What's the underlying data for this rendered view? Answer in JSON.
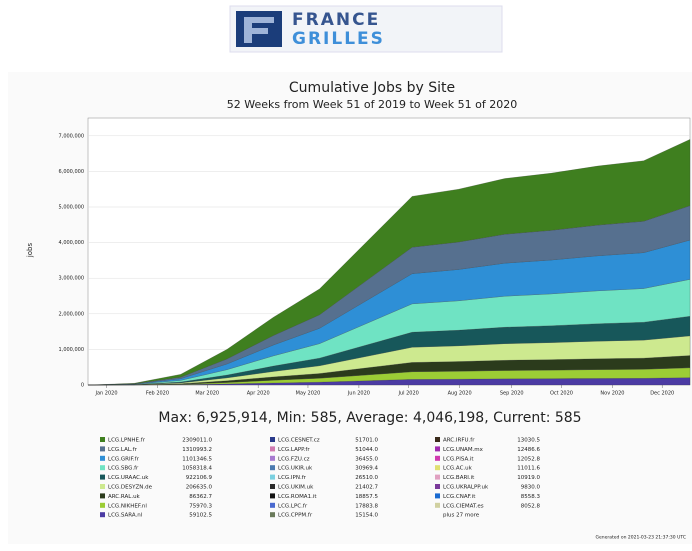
{
  "logo": {
    "line1": "FRANCE",
    "line2": "GRILLES"
  },
  "chart_data": {
    "type": "stacked_area",
    "title": "Cumulative Jobs by Site",
    "subtitle": "52 Weeks from Week 51 of 2019 to Week 51 of 2020",
    "ylabel": "jobs",
    "x": [
      0,
      4,
      8,
      12,
      16,
      20,
      24,
      28,
      32,
      36,
      40,
      44,
      48,
      52
    ],
    "xlim": [
      0,
      52
    ],
    "xticks": [
      {
        "value": 1.6,
        "label": "Jan 2020"
      },
      {
        "value": 6,
        "label": "Feb 2020"
      },
      {
        "value": 10.3,
        "label": "Mar 2020"
      },
      {
        "value": 14.7,
        "label": "Apr 2020"
      },
      {
        "value": 19,
        "label": "May 2020"
      },
      {
        "value": 23.4,
        "label": "Jun 2020"
      },
      {
        "value": 27.7,
        "label": "Jul 2020"
      },
      {
        "value": 32.1,
        "label": "Aug 2020"
      },
      {
        "value": 36.6,
        "label": "Sep 2020"
      },
      {
        "value": 40.9,
        "label": "Oct 2020"
      },
      {
        "value": 45.3,
        "label": "Nov 2020"
      },
      {
        "value": 49.6,
        "label": "Dec 2020"
      }
    ],
    "ylim": [
      0,
      7500000
    ],
    "yticks": [
      0,
      {
        "value": 1000000,
        "label": "1,000,000"
      },
      {
        "value": 2000000,
        "label": "2,000,000"
      },
      {
        "value": 3000000,
        "label": "3,000,000"
      },
      {
        "value": 4000000,
        "label": "4,000,000"
      },
      {
        "value": 5000000,
        "label": "5,000,000"
      },
      {
        "value": 6000000,
        "label": "6,000,000"
      },
      {
        "value": 7000000,
        "label": "7,000,000"
      }
    ],
    "grid": true,
    "series": [
      {
        "name": "LCG.LPNHE.fr",
        "legend_value": "2309011.0",
        "color": "#3f7f1f",
        "values": [
          0,
          13500,
          81000,
          270000,
          513000,
          729000,
          1080000,
          1431000,
          1485000,
          1566000,
          1606500,
          1660500,
          1701000,
          1863000
        ]
      },
      {
        "name": "LCG.LAL.fr",
        "legend_value": "1310993.2",
        "color": "#56708f",
        "values": [
          0,
          7000,
          42000,
          140000,
          266000,
          378000,
          560000,
          742000,
          770000,
          812000,
          833000,
          861000,
          882000,
          966000
        ]
      },
      {
        "name": "LCG.GRIF.fr",
        "legend_value": "1101346.5",
        "color": "#2e8fd6",
        "values": [
          0,
          8000,
          48000,
          160000,
          304000,
          432000,
          640000,
          848000,
          880000,
          928000,
          952000,
          984000,
          1008000,
          1104000
        ]
      },
      {
        "name": "LCG.SBG.fr",
        "legend_value": "1058318.4",
        "color": "#6fe3c3",
        "values": [
          0,
          7500,
          45000,
          150000,
          285000,
          405000,
          600000,
          795000,
          825000,
          870000,
          892500,
          922500,
          945000,
          1035000
        ]
      },
      {
        "name": "LCG.URAAC.uk",
        "legend_value": "922106.9",
        "color": "#17575a",
        "values": [
          0,
          4000,
          24000,
          80000,
          152000,
          216000,
          320000,
          424000,
          440000,
          464000,
          476000,
          492000,
          504000,
          552000
        ]
      },
      {
        "name": "LCG.DESYZN.de",
        "legend_value": "206635.0",
        "color": "#cde98f",
        "values": [
          0,
          4000,
          24000,
          80000,
          152000,
          216000,
          320000,
          424000,
          440000,
          464000,
          476000,
          492000,
          504000,
          552000
        ]
      },
      {
        "name": "ARC.RAL.uk",
        "legend_value": "86362.7",
        "color": "#2b3b1c",
        "values": [
          0,
          2500,
          15000,
          50000,
          95000,
          135000,
          200000,
          265000,
          275000,
          290000,
          297500,
          307500,
          315000,
          345000
        ]
      },
      {
        "name": "LCG.NIKHEF.nl",
        "legend_value": "75970.3",
        "color": "#9ccd35",
        "values": [
          0,
          2000,
          12000,
          40000,
          76000,
          108000,
          160000,
          212000,
          220000,
          232000,
          238000,
          246000,
          252000,
          276000
        ]
      },
      {
        "name": "LCG.SARA.nl",
        "legend_value": "59102.5",
        "color": "#4b3ba3",
        "values": [
          0,
          1500,
          9000,
          30000,
          57000,
          81000,
          120000,
          159000,
          165000,
          174000,
          178500,
          184500,
          189000,
          207000
        ]
      }
    ],
    "legend_more": [
      {
        "name": "LCG.CESNET.cz",
        "value": "51701.0",
        "color": "#2a3a8a"
      },
      {
        "name": "LCG.LAPP.fr",
        "value": "51044.0",
        "color": "#d07ab0"
      },
      {
        "name": "LCG.FZU.cz",
        "value": "36455.0",
        "color": "#a77ad0"
      },
      {
        "name": "LCG.UKIR.uk",
        "value": "30969.4",
        "color": "#4a7ab0"
      },
      {
        "name": "LCG.IPN.fr",
        "value": "26510.0",
        "color": "#7ad0e0"
      },
      {
        "name": "LCG.UKIM.uk",
        "value": "21402.7",
        "color": "#2a2a2a"
      },
      {
        "name": "LCG.ROMA1.it",
        "value": "18857.5",
        "color": "#111111"
      },
      {
        "name": "LCG.LPC.fr",
        "value": "17883.8",
        "color": "#4a6ad0"
      },
      {
        "name": "LCG.CPPM.fr",
        "value": "15154.0",
        "color": "#6a7a5a"
      },
      {
        "name": "ARC.IRFU.fr",
        "value": "13030.5",
        "color": "#3a2a1a"
      },
      {
        "name": "LCG.UNAM.mx",
        "value": "12486.6",
        "color": "#a02ab0"
      },
      {
        "name": "LCG.PISA.it",
        "value": "12052.8",
        "color": "#d03ab0"
      },
      {
        "name": "LCG.AC.uk",
        "value": "11011.6",
        "color": "#e0e070"
      },
      {
        "name": "LCG.BARI.it",
        "value": "10919.0",
        "color": "#e0a0c0"
      },
      {
        "name": "LCG.UKRALPP.uk",
        "value": "9830.0",
        "color": "#7a3a9a"
      },
      {
        "name": "LCG.CNAF.it",
        "value": "8558.3",
        "color": "#1a6ad0"
      },
      {
        "name": "LCG.CIEMAT.es",
        "value": "8052.8",
        "color": "#d0d0a0"
      }
    ],
    "legend_tail": "plus 27 more",
    "stats": "Max: 6,925,914, Min: 585, Average: 4,046,198, Current: 585",
    "footer": "Generated on 2021-03-23 21:37:30 UTC"
  }
}
